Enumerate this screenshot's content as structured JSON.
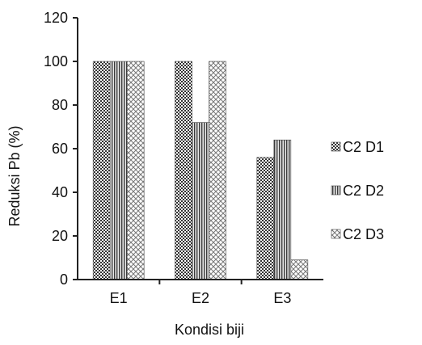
{
  "chart_data": {
    "type": "bar",
    "title": "",
    "xlabel": "Kondisi biji",
    "ylabel": "Reduksi Pb (%)",
    "categories": [
      "E1",
      "E2",
      "E3"
    ],
    "ylim": [
      0,
      120
    ],
    "yticks": [
      0,
      20,
      40,
      60,
      80,
      100,
      120
    ],
    "grid": false,
    "legend_position": "right",
    "series": [
      {
        "name": "C2 D1",
        "values": [
          100,
          100,
          56
        ],
        "pattern": "checker"
      },
      {
        "name": "C2 D2",
        "values": [
          100,
          72,
          64
        ],
        "pattern": "vertical-lines"
      },
      {
        "name": "C2 D3",
        "values": [
          100,
          100,
          9
        ],
        "pattern": "diagonal-cross"
      }
    ],
    "colors": {
      "axis": "#222222",
      "bar_outline": "#444444",
      "pattern_dark": "#333333",
      "pattern_light": "#ffffff"
    }
  }
}
